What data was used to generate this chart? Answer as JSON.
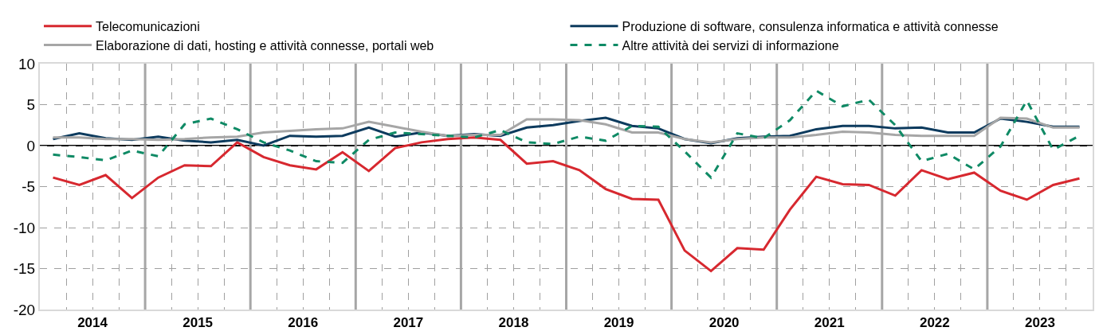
{
  "chart_data": {
    "type": "line",
    "x": [
      2014.125,
      2014.375,
      2014.625,
      2014.875,
      2015.125,
      2015.375,
      2015.625,
      2015.875,
      2016.125,
      2016.375,
      2016.625,
      2016.875,
      2017.125,
      2017.375,
      2017.625,
      2017.875,
      2018.125,
      2018.375,
      2018.625,
      2018.875,
      2019.125,
      2019.375,
      2019.625,
      2019.875,
      2020.125,
      2020.375,
      2020.625,
      2020.875,
      2021.125,
      2021.375,
      2021.625,
      2021.875,
      2022.125,
      2022.375,
      2022.625,
      2022.875,
      2023.125,
      2023.375,
      2023.625,
      2023.875
    ],
    "series": [
      {
        "name": "Telecomunicazioni",
        "color": "#d7282f",
        "line_style": "solid",
        "values": [
          -3.9,
          -4.8,
          -3.6,
          -6.4,
          -3.9,
          -2.4,
          -2.5,
          0.4,
          -1.4,
          -2.4,
          -2.9,
          -0.8,
          -3.1,
          -0.3,
          0.4,
          0.8,
          1.0,
          0.7,
          -2.2,
          -1.9,
          -3.0,
          -5.3,
          -6.5,
          -6.6,
          -12.8,
          -15.3,
          -12.5,
          -12.7,
          -7.8,
          -3.8,
          -4.7,
          -4.8,
          -6.1,
          -3.0,
          -4.1,
          -3.3,
          -5.5,
          -6.6,
          -4.8,
          -4.0
        ]
      },
      {
        "name": "Produzione di software, consulenza informatica e attività connesse",
        "color": "#0d3b5e",
        "line_style": "solid",
        "values": [
          0.8,
          1.5,
          0.9,
          0.7,
          1.1,
          0.6,
          0.4,
          0.7,
          0.0,
          1.2,
          1.1,
          1.2,
          2.2,
          1.1,
          1.6,
          1.2,
          1.4,
          1.2,
          2.2,
          2.5,
          3.0,
          3.4,
          2.4,
          2.1,
          0.8,
          0.3,
          0.9,
          1.1,
          1.2,
          2.0,
          2.4,
          2.4,
          2.1,
          2.2,
          1.6,
          1.6,
          3.3,
          2.9,
          2.3,
          2.3
        ]
      },
      {
        "name": "Elaborazione di dati, hosting e attività connesse, portali web",
        "color": "#a6a6a6",
        "line_style": "solid",
        "values": [
          1.0,
          1.0,
          0.8,
          0.8,
          0.7,
          0.8,
          1.0,
          1.1,
          1.6,
          1.8,
          2.0,
          2.1,
          2.9,
          2.3,
          1.7,
          1.2,
          1.3,
          1.3,
          3.2,
          3.2,
          3.1,
          2.6,
          1.6,
          1.6,
          0.8,
          0.4,
          0.8,
          1.0,
          1.0,
          1.3,
          1.7,
          1.6,
          1.3,
          1.2,
          1.2,
          1.2,
          3.4,
          3.3,
          2.2,
          2.2
        ]
      },
      {
        "name": "Altre attività dei servizi di informazione",
        "color": "#0f8a65",
        "line_style": "dashed",
        "values": [
          -1.1,
          -1.4,
          -1.8,
          -0.6,
          -1.3,
          2.6,
          3.3,
          2.0,
          0.4,
          -0.6,
          -1.9,
          -2.1,
          0.7,
          1.6,
          1.4,
          1.2,
          1.0,
          1.9,
          0.4,
          0.2,
          1.1,
          0.6,
          2.4,
          2.3,
          -0.7,
          -3.9,
          1.5,
          0.9,
          3.1,
          6.7,
          4.8,
          5.6,
          2.5,
          -1.9,
          -1.0,
          -2.9,
          -0.1,
          5.5,
          -0.5,
          1.2
        ]
      }
    ],
    "xlim": [
      2014,
      2024
    ],
    "xticks": [
      {
        "value": 2014.25,
        "label": null
      },
      {
        "value": 2014.5,
        "label": "2014"
      },
      {
        "value": 2014.75,
        "label": null
      },
      {
        "value": 2015.25,
        "label": null
      },
      {
        "value": 2015.5,
        "label": "2015"
      },
      {
        "value": 2015.75,
        "label": null
      },
      {
        "value": 2016.25,
        "label": null
      },
      {
        "value": 2016.5,
        "label": "2016"
      },
      {
        "value": 2016.75,
        "label": null
      },
      {
        "value": 2017.25,
        "label": null
      },
      {
        "value": 2017.5,
        "label": "2017"
      },
      {
        "value": 2017.75,
        "label": null
      },
      {
        "value": 2018.25,
        "label": null
      },
      {
        "value": 2018.5,
        "label": "2018"
      },
      {
        "value": 2018.75,
        "label": null
      },
      {
        "value": 2019.25,
        "label": null
      },
      {
        "value": 2019.5,
        "label": "2019"
      },
      {
        "value": 2019.75,
        "label": null
      },
      {
        "value": 2020.25,
        "label": null
      },
      {
        "value": 2020.5,
        "label": "2020"
      },
      {
        "value": 2020.75,
        "label": null
      },
      {
        "value": 2021.25,
        "label": null
      },
      {
        "value": 2021.5,
        "label": "2021"
      },
      {
        "value": 2021.75,
        "label": null
      },
      {
        "value": 2022.25,
        "label": null
      },
      {
        "value": 2022.5,
        "label": "2022"
      },
      {
        "value": 2022.75,
        "label": null
      },
      {
        "value": 2023.25,
        "label": null
      },
      {
        "value": 2023.5,
        "label": "2023"
      },
      {
        "value": 2023.75,
        "label": null
      }
    ],
    "ylim": [
      -20,
      10
    ],
    "yticks": [
      -20,
      -15,
      -10,
      -5,
      0,
      5,
      10
    ],
    "grid": true,
    "legend": "top",
    "marker": "none",
    "ref_lines": [
      {
        "axis": "y",
        "value": 0,
        "color": "#000000"
      },
      {
        "axis": "x",
        "value": 2015,
        "color": "#a6a6a6"
      },
      {
        "axis": "x",
        "value": 2016,
        "color": "#a6a6a6"
      },
      {
        "axis": "x",
        "value": 2017,
        "color": "#a6a6a6"
      },
      {
        "axis": "x",
        "value": 2018,
        "color": "#a6a6a6"
      },
      {
        "axis": "x",
        "value": 2019,
        "color": "#a6a6a6"
      },
      {
        "axis": "x",
        "value": 2020,
        "color": "#a6a6a6"
      },
      {
        "axis": "x",
        "value": 2021,
        "color": "#a6a6a6"
      },
      {
        "axis": "x",
        "value": 2022,
        "color": "#a6a6a6"
      },
      {
        "axis": "x",
        "value": 2023,
        "color": "#a6a6a6"
      }
    ]
  }
}
